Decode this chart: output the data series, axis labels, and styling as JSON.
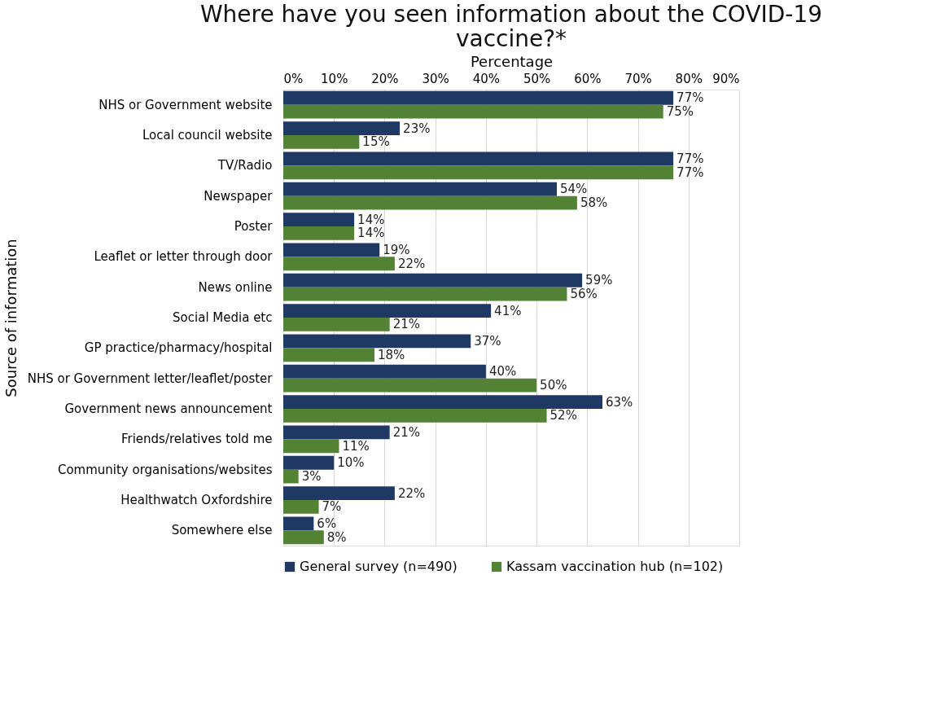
{
  "chart_data": {
    "type": "bar",
    "orientation": "horizontal",
    "title": "Where have you seen information about the COVID-19 vaccine?*",
    "xlabel": "Percentage",
    "ylabel": "Source of information",
    "categories": [
      "NHS or Government website",
      "Local council website",
      "TV/Radio",
      "Newspaper",
      "Poster",
      "Leaflet or letter through door",
      "News online",
      "Social Media etc",
      "GP practice/pharmacy/hospital",
      "NHS or Government letter/leaflet/poster",
      "Government news announcement",
      "Friends/relatives told me",
      "Community organisations/websites",
      "Healthwatch Oxfordshire",
      "Somewhere else"
    ],
    "series": [
      {
        "name": "General survey (n=490)",
        "color": "#203864",
        "values": [
          77,
          23,
          77,
          54,
          14,
          19,
          59,
          41,
          37,
          40,
          63,
          21,
          10,
          22,
          6
        ],
        "value_labels": [
          "77%",
          "23%",
          "77%",
          "54%",
          "14%",
          "19%",
          "59%",
          "41%",
          "37%",
          "40%",
          "63%",
          "21%",
          "10%",
          "22%",
          "6%"
        ]
      },
      {
        "name": "Kassam vaccination hub (n=102)",
        "color": "#548235",
        "values": [
          75,
          15,
          77,
          58,
          14,
          22,
          56,
          21,
          18,
          50,
          52,
          11,
          3,
          7,
          8
        ],
        "value_labels": [
          "75%",
          "15%",
          "77%",
          "58%",
          "14%",
          "22%",
          "56%",
          "21%",
          "18%",
          "50%",
          "52%",
          "11%",
          "3%",
          "7%",
          "8%"
        ]
      }
    ],
    "xlim": [
      0,
      90
    ],
    "xticks": [
      {
        "value": 0,
        "label": "0%"
      },
      {
        "value": 10,
        "label": "10%"
      },
      {
        "value": 20,
        "label": "20%"
      },
      {
        "value": 30,
        "label": "30%"
      },
      {
        "value": 40,
        "label": "40%"
      },
      {
        "value": 50,
        "label": "50%"
      },
      {
        "value": 60,
        "label": "60%"
      },
      {
        "value": 70,
        "label": "70%"
      },
      {
        "value": 80,
        "label": "80%"
      },
      {
        "value": 90,
        "label": "90%"
      }
    ],
    "grid": "x",
    "legend": "bottom"
  }
}
